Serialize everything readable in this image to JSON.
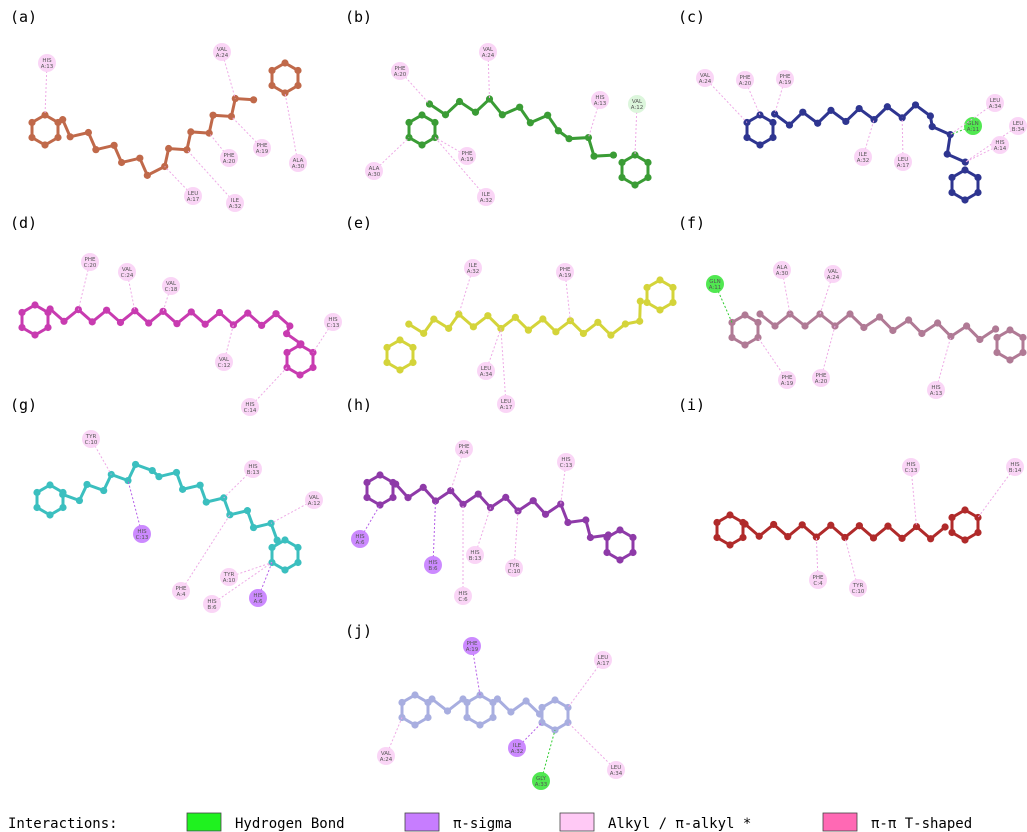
{
  "panels": [
    {
      "label": "(a)",
      "color": "#c0694a",
      "residues": [
        {
          "name": "HIS",
          "chain": "A:13",
          "color": "#f9d0f5"
        },
        {
          "name": "VAL",
          "chain": "A:24",
          "color": "#f9d0f5"
        },
        {
          "name": "PHE",
          "chain": "A:20",
          "color": "#f9d0f5"
        },
        {
          "name": "PHE",
          "chain": "A:19",
          "color": "#f9d0f5"
        },
        {
          "name": "ALA",
          "chain": "A:30",
          "color": "#f9d0f5"
        },
        {
          "name": "LEU",
          "chain": "A:17",
          "color": "#f9d0f5"
        },
        {
          "name": "ILE",
          "chain": "A:32",
          "color": "#f9d0f5"
        }
      ]
    },
    {
      "label": "(b)",
      "color": "#3a9c35",
      "residues": [
        {
          "name": "PHE",
          "chain": "A:20",
          "color": "#f9d0f5"
        },
        {
          "name": "VAL",
          "chain": "A:24",
          "color": "#f9d0f5"
        },
        {
          "name": "HIS",
          "chain": "A:13",
          "color": "#f9d0f5"
        },
        {
          "name": "VAL",
          "chain": "A:12",
          "color": "#d8f5d8"
        },
        {
          "name": "PHE",
          "chain": "A:19",
          "color": "#f9d0f5"
        },
        {
          "name": "ALA",
          "chain": "A:30",
          "color": "#f9d0f5"
        },
        {
          "name": "ILE",
          "chain": "A:32",
          "color": "#f9d0f5"
        }
      ]
    },
    {
      "label": "(c)",
      "color": "#2e3590",
      "residues": [
        {
          "name": "VAL",
          "chain": "A:24",
          "color": "#f9d0f5"
        },
        {
          "name": "PHE",
          "chain": "A:20",
          "color": "#f9d0f5"
        },
        {
          "name": "PHE",
          "chain": "A:19",
          "color": "#f9d0f5"
        },
        {
          "name": "ILE",
          "chain": "A:32",
          "color": "#f9d0f5"
        },
        {
          "name": "LEU",
          "chain": "A:17",
          "color": "#f9d0f5"
        },
        {
          "name": "GLN",
          "chain": "A:11",
          "color": "#3ee63e"
        },
        {
          "name": "LEU",
          "chain": "A:34",
          "color": "#f9d0f5"
        },
        {
          "name": "LEU",
          "chain": "B:34",
          "color": "#f9d0f5"
        },
        {
          "name": "HIS",
          "chain": "A:14",
          "color": "#f9d0f5"
        }
      ]
    },
    {
      "label": "(d)",
      "color": "#c83bb0",
      "residues": [
        {
          "name": "PHE",
          "chain": "C:20",
          "color": "#f9d0f5"
        },
        {
          "name": "VAL",
          "chain": "C:24",
          "color": "#f9d0f5"
        },
        {
          "name": "VAL",
          "chain": "C:18",
          "color": "#f9d0f5"
        },
        {
          "name": "HIS",
          "chain": "C:13",
          "color": "#f9d0f5"
        },
        {
          "name": "VAL",
          "chain": "C:12",
          "color": "#f9d0f5"
        },
        {
          "name": "HIS",
          "chain": "C:14",
          "color": "#f9d0f5"
        }
      ]
    },
    {
      "label": "(e)",
      "color": "#d4d43a",
      "residues": [
        {
          "name": "ILE",
          "chain": "A:32",
          "color": "#f9d0f5"
        },
        {
          "name": "PHE",
          "chain": "A:19",
          "color": "#f9d0f5"
        },
        {
          "name": "LEU",
          "chain": "A:34",
          "color": "#f9d0f5"
        },
        {
          "name": "LEU",
          "chain": "A:17",
          "color": "#f9d0f5"
        }
      ]
    },
    {
      "label": "(f)",
      "color": "#b07a95",
      "residues": [
        {
          "name": "GLN",
          "chain": "A:11",
          "color": "#3ee63e"
        },
        {
          "name": "ALA",
          "chain": "A:30",
          "color": "#f9d0f5"
        },
        {
          "name": "VAL",
          "chain": "A:24",
          "color": "#f9d0f5"
        },
        {
          "name": "PHE",
          "chain": "A:19",
          "color": "#f9d0f5"
        },
        {
          "name": "PHE",
          "chain": "A:20",
          "color": "#f9d0f5"
        },
        {
          "name": "HIS",
          "chain": "A:13",
          "color": "#f9d0f5"
        }
      ]
    },
    {
      "label": "(g)",
      "color": "#3bbfbf",
      "residues": [
        {
          "name": "TYR",
          "chain": "C:10",
          "color": "#f9d0f5"
        },
        {
          "name": "HIS",
          "chain": "B:13",
          "color": "#f9d0f5"
        },
        {
          "name": "VAL",
          "chain": "A:12",
          "color": "#f9d0f5"
        },
        {
          "name": "HIS",
          "chain": "C:13",
          "color": "#c77dff"
        },
        {
          "name": "TYR",
          "chain": "A:10",
          "color": "#f9d0f5"
        },
        {
          "name": "PHE",
          "chain": "A:4",
          "color": "#f9d0f5"
        },
        {
          "name": "HIS",
          "chain": "B:6",
          "color": "#f9d0f5"
        },
        {
          "name": "HIS",
          "chain": "A:6",
          "color": "#c77dff"
        }
      ]
    },
    {
      "label": "(h)",
      "color": "#8e3aa8",
      "residues": [
        {
          "name": "PHE",
          "chain": "A:4",
          "color": "#f9d0f5"
        },
        {
          "name": "HIS",
          "chain": "C:13",
          "color": "#f9d0f5"
        },
        {
          "name": "HIS",
          "chain": "A:6",
          "color": "#c77dff"
        },
        {
          "name": "HIS",
          "chain": "B:6",
          "color": "#c77dff"
        },
        {
          "name": "HIS",
          "chain": "B:13",
          "color": "#f9d0f5"
        },
        {
          "name": "TYR",
          "chain": "C:10",
          "color": "#f9d0f5"
        },
        {
          "name": "HIS",
          "chain": "C:6",
          "color": "#f9d0f5"
        }
      ]
    },
    {
      "label": "(i)",
      "color": "#b02a2a",
      "residues": [
        {
          "name": "HIS",
          "chain": "C:13",
          "color": "#f9d0f5"
        },
        {
          "name": "HIS",
          "chain": "B:14",
          "color": "#f9d0f5"
        },
        {
          "name": "PHE",
          "chain": "C:4",
          "color": "#f9d0f5"
        },
        {
          "name": "TYR",
          "chain": "C:10",
          "color": "#f9d0f5"
        }
      ]
    },
    {
      "label": "(j)",
      "color": "#a8aee0",
      "residues": [
        {
          "name": "PHE",
          "chain": "A:19",
          "color": "#c77dff"
        },
        {
          "name": "LEU",
          "chain": "A:17",
          "color": "#f9d0f5"
        },
        {
          "name": "VAL",
          "chain": "A:24",
          "color": "#f9d0f5"
        },
        {
          "name": "ILE",
          "chain": "A:32",
          "color": "#c77dff"
        },
        {
          "name": "LEU",
          "chain": "A:34",
          "color": "#f9d0f5"
        },
        {
          "name": "GLY",
          "chain": "A:33",
          "color": "#3ee63e"
        }
      ]
    }
  ],
  "legend": {
    "title": "Interactions:",
    "items": [
      {
        "label": "Hydrogen Bond",
        "color": "#1ff21f"
      },
      {
        "label": "π-sigma",
        "color": "#c77dff"
      },
      {
        "label": "Alkyl / π-alkyl *",
        "color": "#ffc9f5"
      },
      {
        "label": "π-π T-shaped",
        "color": "#ff69b4"
      }
    ]
  }
}
